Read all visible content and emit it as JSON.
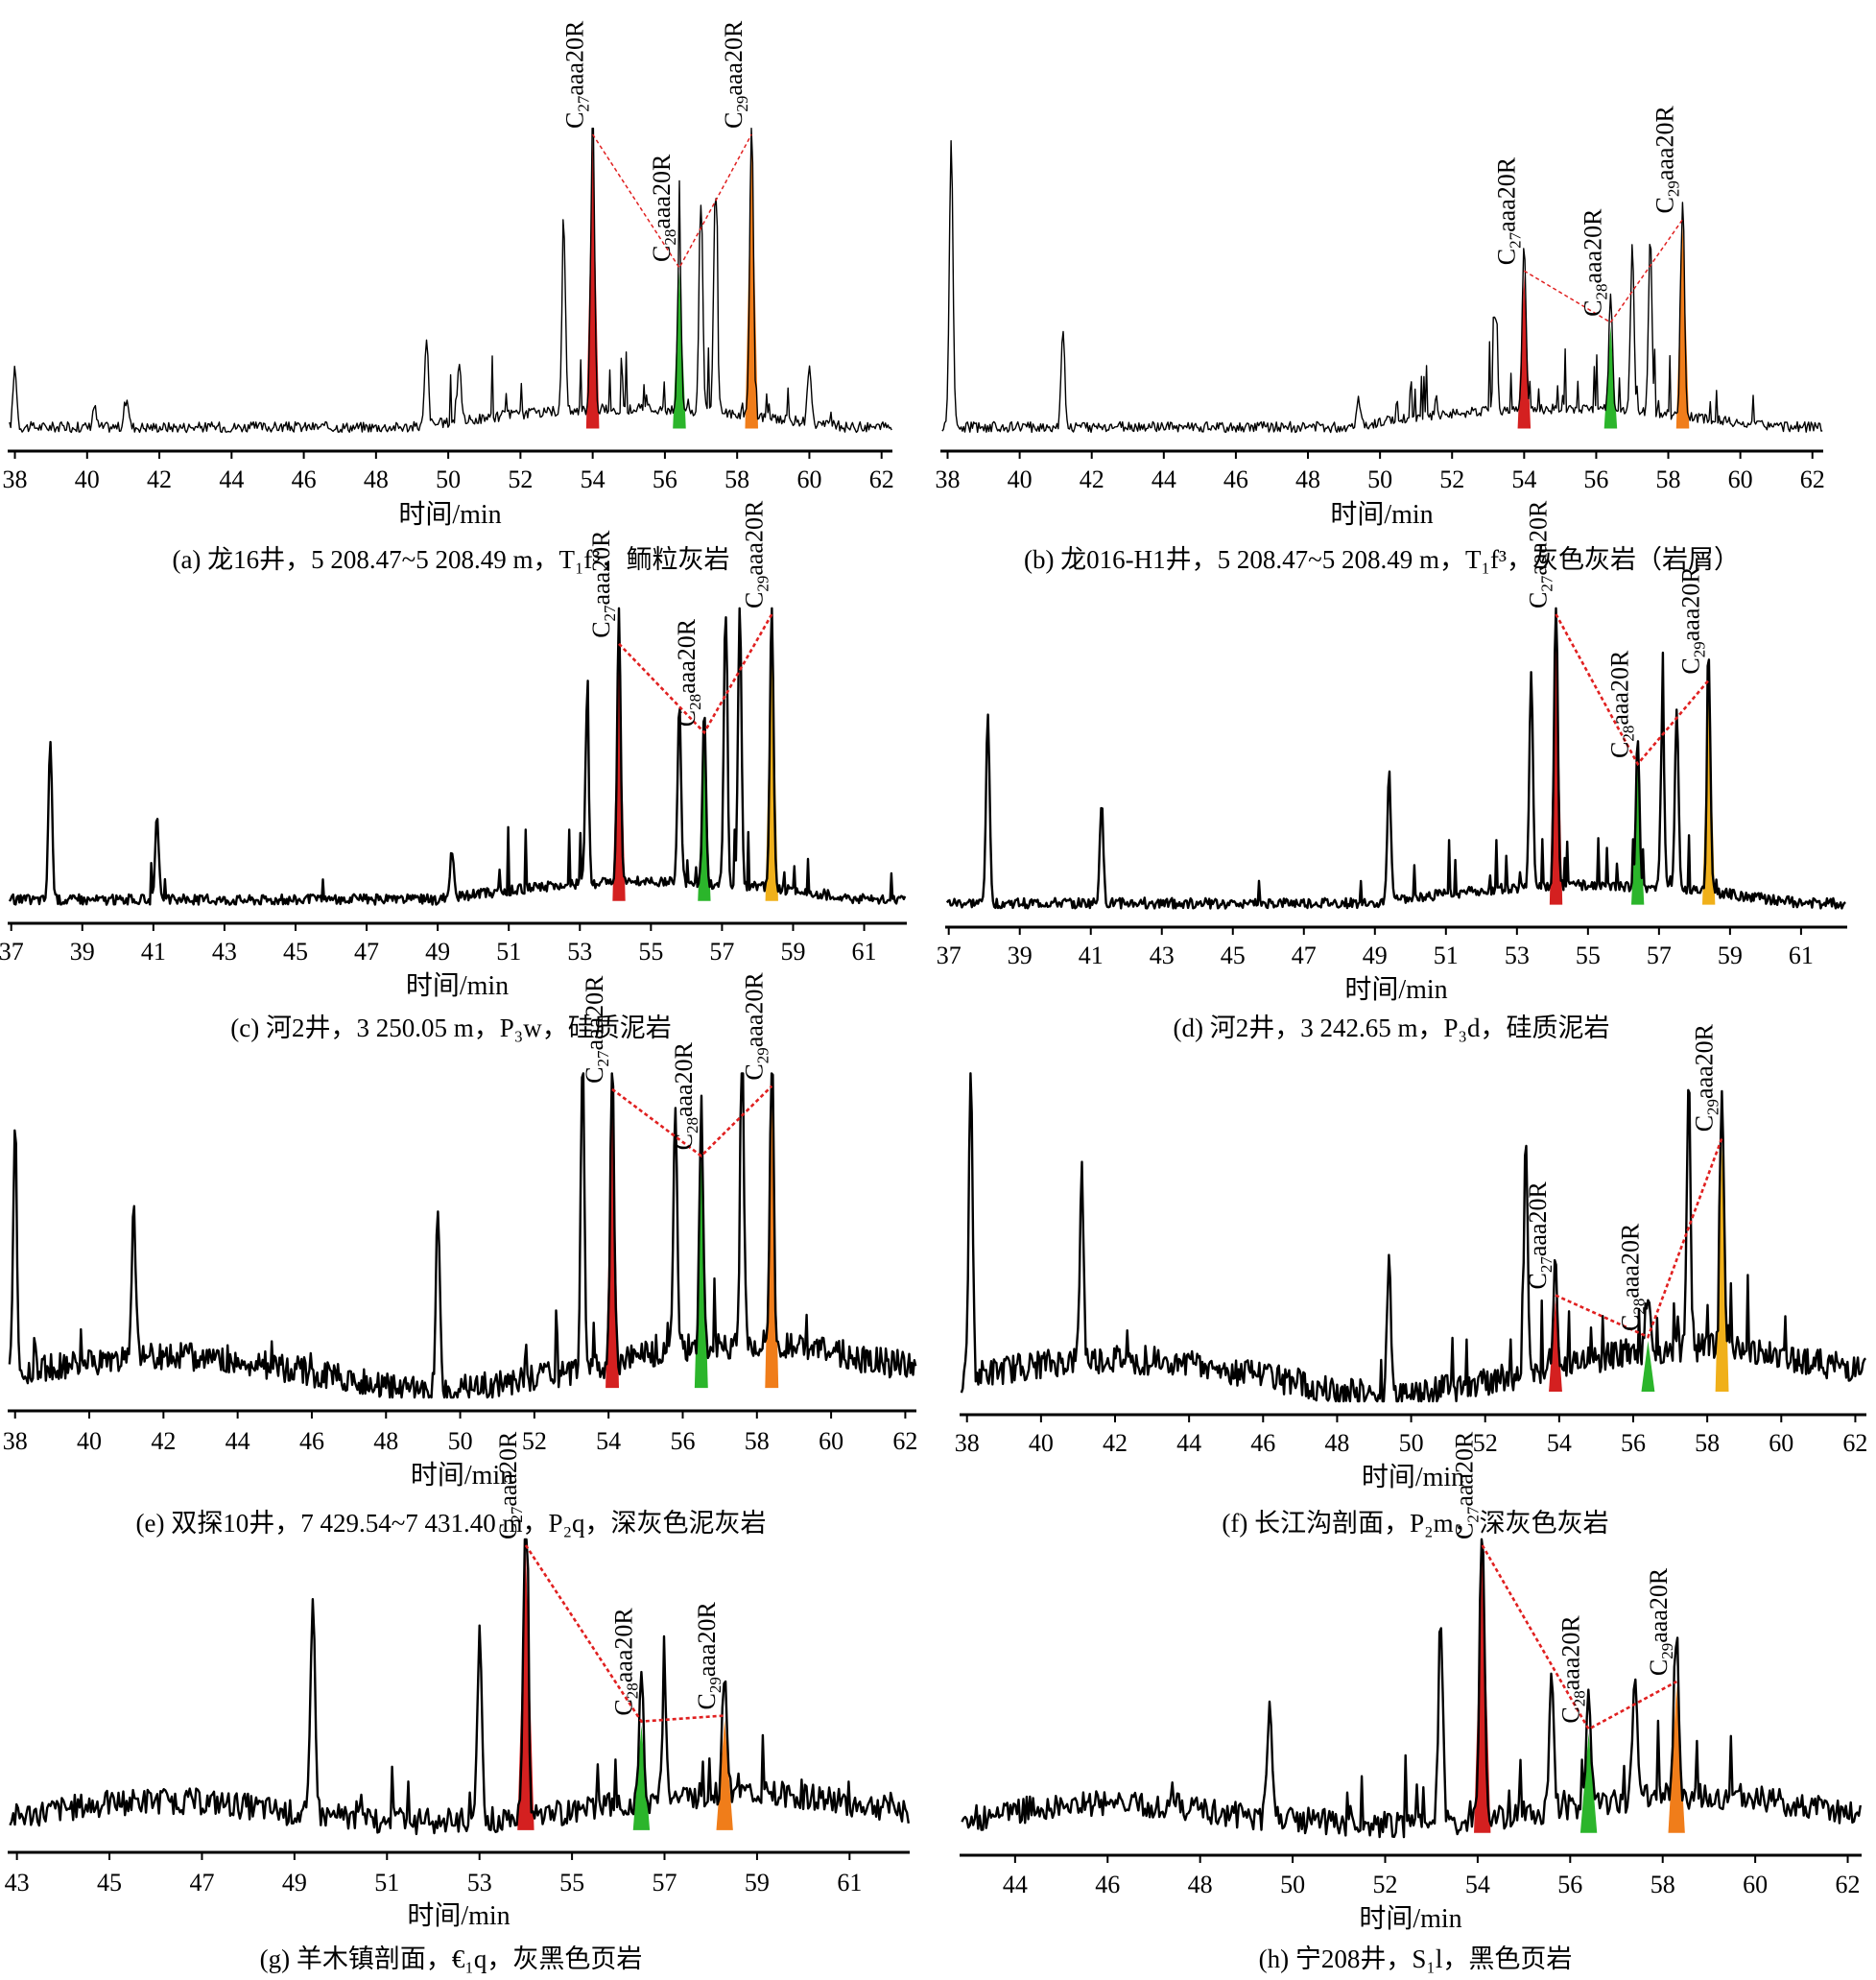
{
  "figure": {
    "panels": [
      {
        "id": "a",
        "caption": "(a) 龙16井，5 208.47~5 208.49 m，T₁f³，鲕粒灰岩",
        "xlabel": "时间/min",
        "ticks": [
          38,
          40,
          42,
          44,
          46,
          48,
          50,
          52,
          54,
          56,
          58,
          60,
          62
        ],
        "labels": [
          {
            "sub": "27",
            "pre": "C",
            "post": "aaa20R"
          },
          {
            "sub": "28",
            "pre": "C",
            "post": "aaa20R"
          },
          {
            "sub": "29",
            "pre": "C",
            "post": "aaa20R"
          }
        ]
      },
      {
        "id": "b",
        "caption": "(b) 龙016-H1井，5 208.47~5 208.49 m，T₁f³，灰色灰岩（岩屑）",
        "xlabel": "时间/min",
        "ticks": [
          38,
          40,
          42,
          44,
          46,
          48,
          50,
          52,
          54,
          56,
          58,
          60,
          62
        ],
        "labels": [
          {
            "sub": "27",
            "pre": "C",
            "post": "aaa20R"
          },
          {
            "sub": "28",
            "pre": "C",
            "post": "aaa20R"
          },
          {
            "sub": "29",
            "pre": "C",
            "post": "aaa20R"
          }
        ]
      },
      {
        "id": "c",
        "caption": "(c) 河2井，3 250.05 m，P₃w，硅质泥岩",
        "xlabel": "时间/min",
        "ticks": [
          37,
          39,
          41,
          43,
          45,
          47,
          49,
          51,
          53,
          55,
          57,
          59,
          61
        ],
        "labels": [
          {
            "sub": "27",
            "pre": "C",
            "post": "aaa20R"
          },
          {
            "sub": "28",
            "pre": "C",
            "post": "aaa20R"
          },
          {
            "sub": "29",
            "pre": "C",
            "post": "aaa20R"
          }
        ]
      },
      {
        "id": "d",
        "caption": "(d) 河2井，3 242.65 m，P₃d，硅质泥岩",
        "xlabel": "时间/min",
        "ticks": [
          37,
          39,
          41,
          43,
          45,
          47,
          49,
          51,
          53,
          55,
          57,
          59,
          61
        ],
        "labels": [
          {
            "sub": "27",
            "pre": "C",
            "post": "aaa20R"
          },
          {
            "sub": "28",
            "pre": "C",
            "post": "aaa20R"
          },
          {
            "sub": "29",
            "pre": "C",
            "post": "aaa20R"
          }
        ]
      },
      {
        "id": "e",
        "caption": "(e) 双探10井，7 429.54~7 431.40 m，P₂q，深灰色泥灰岩",
        "xlabel": "时间/min",
        "ticks": [
          38,
          40,
          42,
          44,
          46,
          48,
          50,
          52,
          54,
          56,
          58,
          60,
          62
        ],
        "labels": [
          {
            "sub": "27",
            "pre": "C",
            "post": "aaa20R"
          },
          {
            "sub": "28",
            "pre": "C",
            "post": "aaa20R"
          },
          {
            "sub": "29",
            "pre": "C",
            "post": "aaa20R"
          }
        ]
      },
      {
        "id": "f",
        "caption": "(f) 长江沟剖面，P₂m，深灰色灰岩",
        "xlabel": "时间/min",
        "ticks": [
          38,
          40,
          42,
          44,
          46,
          48,
          50,
          52,
          54,
          56,
          58,
          60,
          62
        ],
        "labels": [
          {
            "sub": "27",
            "pre": "C",
            "post": "aaa20R"
          },
          {
            "sub": "28",
            "pre": "C",
            "post": "aaa20R"
          },
          {
            "sub": "29",
            "pre": "C",
            "post": "aaa20R"
          }
        ]
      },
      {
        "id": "g",
        "caption": "(g) 羊木镇剖面，€₁q，灰黑色页岩",
        "xlabel": "时间/min",
        "ticks": [
          43,
          45,
          47,
          49,
          51,
          53,
          55,
          57,
          59,
          61
        ],
        "labels": [
          {
            "sub": "27",
            "pre": "C",
            "post": "aaa20R"
          },
          {
            "sub": "28",
            "pre": "C",
            "post": "aaa20R"
          },
          {
            "sub": "29",
            "pre": "C",
            "post": "aaa20R"
          }
        ]
      },
      {
        "id": "h",
        "caption": "(h) 宁208井，S₁l，黑色页岩",
        "xlabel": "时间/min",
        "ticks": [
          44,
          46,
          48,
          50,
          52,
          54,
          56,
          58,
          60,
          62
        ],
        "labels": [
          {
            "sub": "27",
            "pre": "C",
            "post": "aaa20R"
          },
          {
            "sub": "28",
            "pre": "C",
            "post": "aaa20R"
          },
          {
            "sub": "29",
            "pre": "C",
            "post": "aaa20R"
          }
        ]
      }
    ]
  },
  "chart_data": [
    {
      "type": "line",
      "panel": "a",
      "xlim": [
        37.8,
        62.3
      ],
      "peaks": [
        {
          "x": 38.0,
          "y": 0.2
        },
        {
          "x": 40.2,
          "y": 0.07
        },
        {
          "x": 41.1,
          "y": 0.1
        },
        {
          "x": 49.4,
          "y": 0.28
        },
        {
          "x": 50.3,
          "y": 0.2
        },
        {
          "x": 53.2,
          "y": 0.58
        },
        {
          "x": 54.0,
          "y": 1.0,
          "label": "C27aaa20R"
        },
        {
          "x": 56.4,
          "y": 0.56,
          "label": "C28aaa20R"
        },
        {
          "x": 57.0,
          "y": 0.7
        },
        {
          "x": 57.4,
          "y": 0.75
        },
        {
          "x": 58.4,
          "y": 1.0,
          "label": "C29aaa20R"
        },
        {
          "x": 60.0,
          "y": 0.2
        }
      ],
      "colors": {
        "C27": "#d42020",
        "C28": "#2bb52b",
        "C29": "#f07d1a",
        "link": "#e02020"
      }
    },
    {
      "type": "line",
      "panel": "b",
      "xlim": [
        37.8,
        62.3
      ],
      "peaks": [
        {
          "x": 38.1,
          "y": 0.96
        },
        {
          "x": 41.2,
          "y": 0.33
        },
        {
          "x": 49.4,
          "y": 0.1
        },
        {
          "x": 53.2,
          "y": 0.32
        },
        {
          "x": 54.0,
          "y": 0.55,
          "label": "C27aaa20R"
        },
        {
          "x": 56.4,
          "y": 0.38,
          "label": "C28aaa20R"
        },
        {
          "x": 57.0,
          "y": 0.54
        },
        {
          "x": 57.5,
          "y": 0.58
        },
        {
          "x": 58.4,
          "y": 0.72,
          "label": "C29aaa20R"
        }
      ],
      "colors": {
        "C27": "#d42020",
        "C28": "#2bb52b",
        "C29": "#f07d1a",
        "link": "#e02020"
      }
    },
    {
      "type": "line",
      "panel": "c",
      "xlim": [
        36.9,
        62.2
      ],
      "peaks": [
        {
          "x": 38.1,
          "y": 0.55
        },
        {
          "x": 41.1,
          "y": 0.3
        },
        {
          "x": 49.4,
          "y": 0.16
        },
        {
          "x": 53.2,
          "y": 0.58
        },
        {
          "x": 54.1,
          "y": 0.9,
          "label": "C27aaa20R"
        },
        {
          "x": 55.8,
          "y": 0.6
        },
        {
          "x": 56.5,
          "y": 0.6,
          "label": "C28aaa20R"
        },
        {
          "x": 57.1,
          "y": 0.92
        },
        {
          "x": 57.5,
          "y": 0.95
        },
        {
          "x": 58.4,
          "y": 1.0,
          "label": "C29aaa20R"
        }
      ],
      "colors": {
        "C27": "#d42020",
        "C28": "#2bb52b",
        "C29": "#f0b01a",
        "link": "#e02020"
      }
    },
    {
      "type": "line",
      "panel": "d",
      "xlim": [
        36.9,
        62.3
      ],
      "peaks": [
        {
          "x": 38.1,
          "y": 0.65
        },
        {
          "x": 41.3,
          "y": 0.34
        },
        {
          "x": 49.4,
          "y": 0.43
        },
        {
          "x": 53.4,
          "y": 0.72
        },
        {
          "x": 54.1,
          "y": 1.0,
          "label": "C27aaa20R"
        },
        {
          "x": 56.4,
          "y": 0.5,
          "label": "C28aaa20R"
        },
        {
          "x": 57.1,
          "y": 0.59
        },
        {
          "x": 57.5,
          "y": 0.6
        },
        {
          "x": 58.4,
          "y": 0.78,
          "label": "C29aaa20R"
        }
      ],
      "colors": {
        "C27": "#d42020",
        "C28": "#2bb52b",
        "C29": "#f0b01a",
        "link": "#e02020"
      }
    },
    {
      "type": "line",
      "panel": "e",
      "xlim": [
        37.8,
        62.3
      ],
      "peaks": [
        {
          "x": 38.0,
          "y": 0.78
        },
        {
          "x": 41.2,
          "y": 0.48
        },
        {
          "x": 49.4,
          "y": 0.6
        },
        {
          "x": 53.3,
          "y": 1.0
        },
        {
          "x": 54.1,
          "y": 0.97,
          "label": "C27aaa20R"
        },
        {
          "x": 55.8,
          "y": 0.76
        },
        {
          "x": 56.5,
          "y": 0.76,
          "label": "C28aaa20R"
        },
        {
          "x": 57.6,
          "y": 1.0
        },
        {
          "x": 58.4,
          "y": 0.98,
          "label": "C29aaa20R"
        }
      ],
      "colors": {
        "C27": "#d42020",
        "C28": "#2bb52b",
        "C29": "#f07d1a",
        "link": "#e02020"
      }
    },
    {
      "type": "line",
      "panel": "f",
      "xlim": [
        37.8,
        62.3
      ],
      "peaks": [
        {
          "x": 38.1,
          "y": 1.0
        },
        {
          "x": 41.1,
          "y": 0.6
        },
        {
          "x": 49.4,
          "y": 0.41
        },
        {
          "x": 53.1,
          "y": 0.72
        },
        {
          "x": 53.9,
          "y": 0.33,
          "label": "C27aaa20R"
        },
        {
          "x": 56.4,
          "y": 0.2,
          "label": "C28aaa20R"
        },
        {
          "x": 57.5,
          "y": 0.84
        },
        {
          "x": 58.4,
          "y": 0.82,
          "label": "C29aaa20R"
        }
      ],
      "colors": {
        "C27": "#d42020",
        "C28": "#2bb52b",
        "C29": "#f0b01a",
        "link": "#e02020"
      }
    },
    {
      "type": "line",
      "panel": "g",
      "xlim": [
        42.8,
        62.3
      ],
      "peaks": [
        {
          "x": 49.4,
          "y": 0.72
        },
        {
          "x": 53.0,
          "y": 0.6
        },
        {
          "x": 54.0,
          "y": 1.0,
          "label": "C27aaa20R"
        },
        {
          "x": 56.5,
          "y": 0.4,
          "label": "C28aaa20R"
        },
        {
          "x": 57.0,
          "y": 0.35
        },
        {
          "x": 58.3,
          "y": 0.42,
          "label": "C29aaa20R"
        }
      ],
      "colors": {
        "C27": "#d42020",
        "C28": "#2bb52b",
        "C29": "#f07d1a",
        "link": "#e02020"
      }
    },
    {
      "type": "line",
      "panel": "h",
      "xlim": [
        42.8,
        62.3
      ],
      "peaks": [
        {
          "x": 49.5,
          "y": 0.39
        },
        {
          "x": 53.2,
          "y": 0.65
        },
        {
          "x": 54.1,
          "y": 1.0,
          "label": "C27aaa20R"
        },
        {
          "x": 55.6,
          "y": 0.45
        },
        {
          "x": 56.4,
          "y": 0.38,
          "label": "C28aaa20R"
        },
        {
          "x": 57.4,
          "y": 0.45
        },
        {
          "x": 58.3,
          "y": 0.54,
          "label": "C29aaa20R"
        }
      ],
      "colors": {
        "C27": "#d42020",
        "C28": "#2bb52b",
        "C29": "#f07d1a",
        "link": "#e02020"
      }
    }
  ]
}
